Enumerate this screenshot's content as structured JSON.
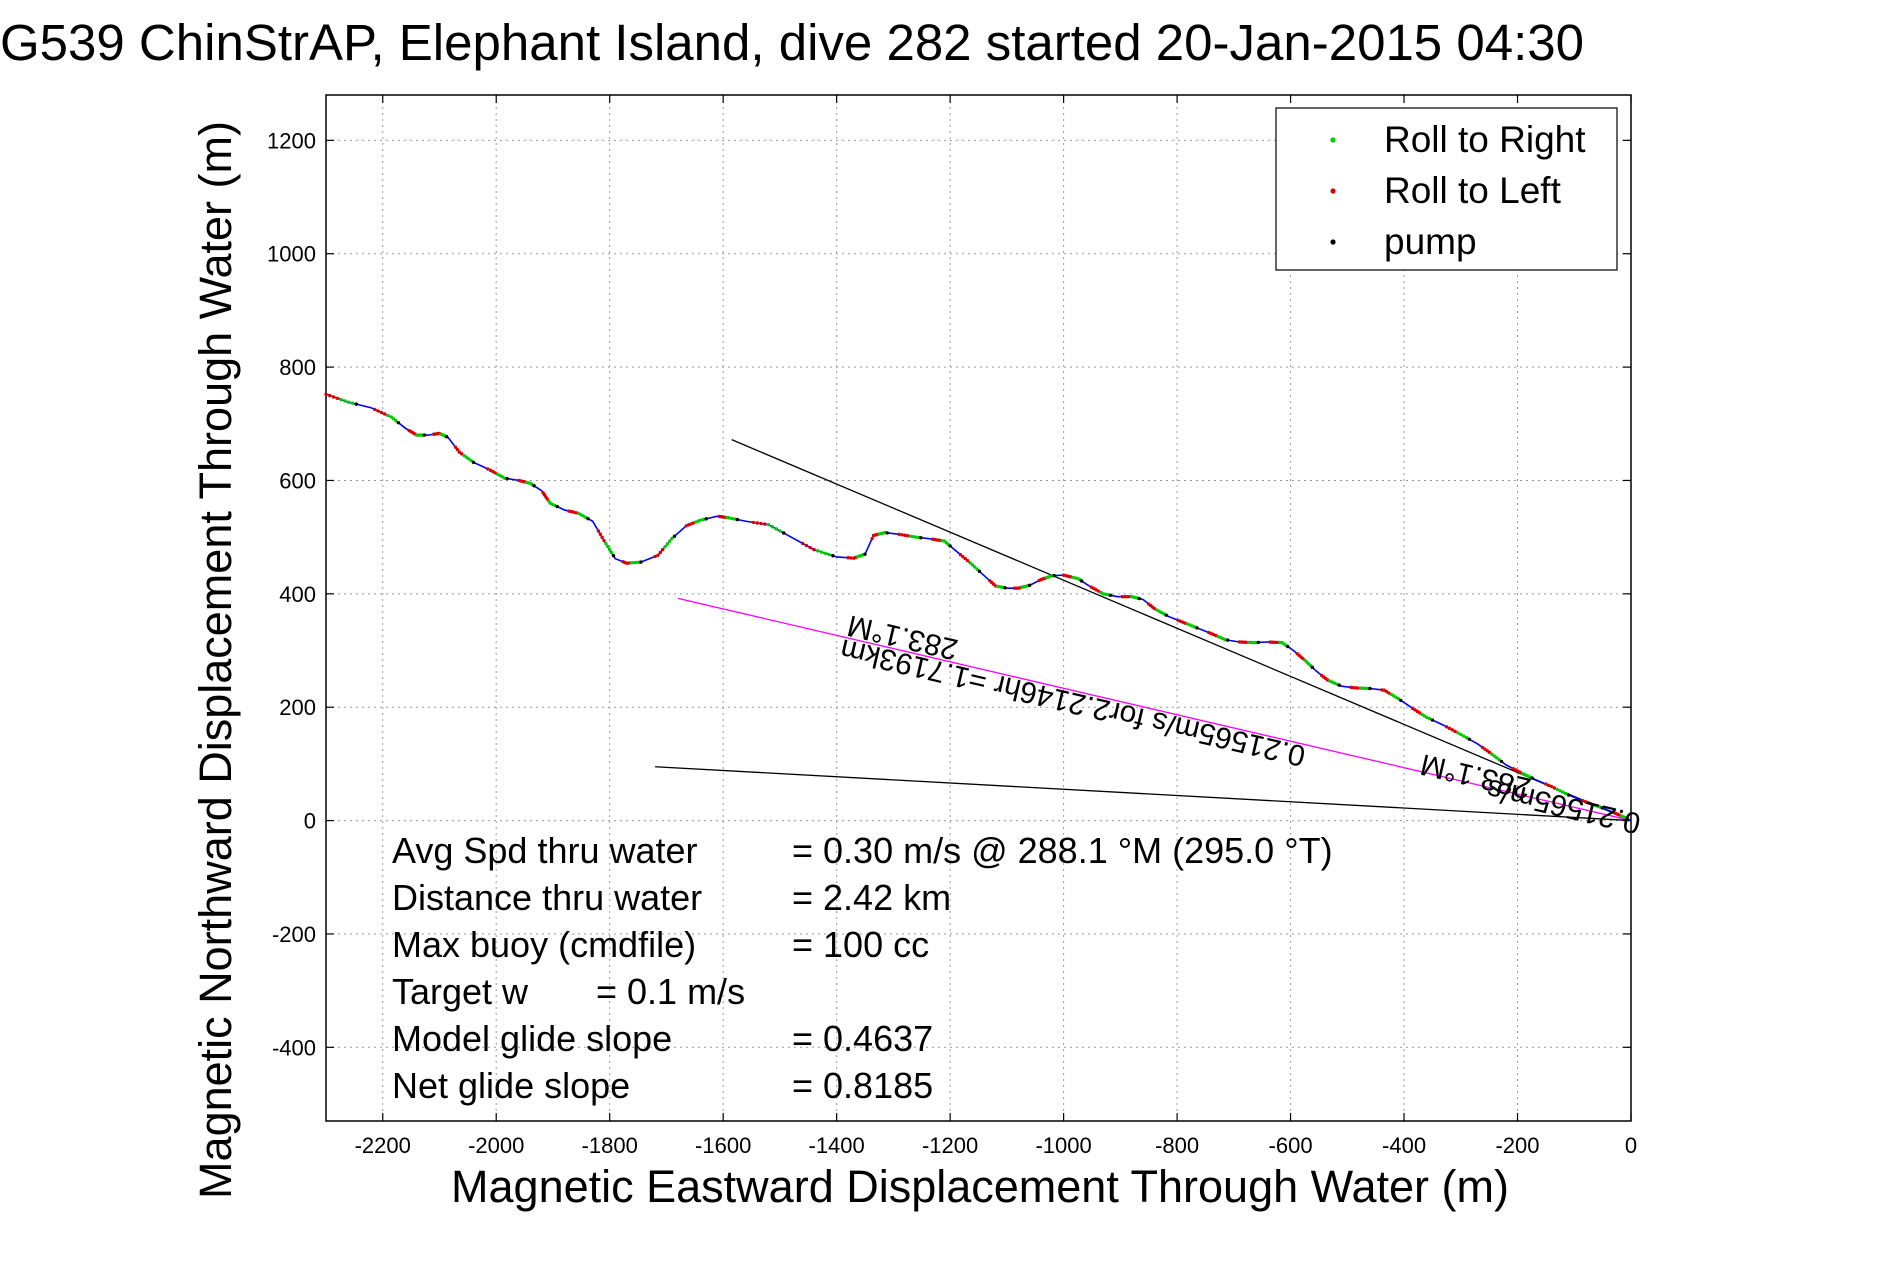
{
  "chart_data": {
    "type": "line",
    "title": "G539 ChinStrAP, Elephant Island, dive 282 started 20-Jan-2015 04:30",
    "xlabel": "Magnetic Eastward Displacement Through Water (m)",
    "ylabel": "Magnetic Northward Displacement Through Water (m)",
    "xlim": [
      -2300,
      0
    ],
    "ylim": [
      -530,
      1280
    ],
    "x_ticks": [
      -2200,
      -2000,
      -1800,
      -1600,
      -1400,
      -1200,
      -1000,
      -800,
      -600,
      -400,
      -200,
      0
    ],
    "y_ticks": [
      -400,
      -200,
      0,
      200,
      400,
      600,
      800,
      1000,
      1200
    ],
    "grid": true,
    "legend_position": "top-right",
    "legend": [
      {
        "label": "Roll to Right",
        "color": "#00cc00"
      },
      {
        "label": "Roll to Left",
        "color": "#dd0000"
      },
      {
        "label": "pump",
        "color": "#000000"
      }
    ],
    "track": {
      "color": "#0000ff",
      "points": [
        [
          -2300,
          752
        ],
        [
          -2260,
          738
        ],
        [
          -2220,
          728
        ],
        [
          -2185,
          712
        ],
        [
          -2160,
          692
        ],
        [
          -2140,
          680
        ],
        [
          -2120,
          680
        ],
        [
          -2100,
          683
        ],
        [
          -2085,
          676
        ],
        [
          -2065,
          650
        ],
        [
          -2040,
          632
        ],
        [
          -2010,
          618
        ],
        [
          -1985,
          604
        ],
        [
          -1960,
          600
        ],
        [
          -1940,
          595
        ],
        [
          -1920,
          582
        ],
        [
          -1905,
          560
        ],
        [
          -1880,
          548
        ],
        [
          -1855,
          542
        ],
        [
          -1830,
          528
        ],
        [
          -1810,
          494
        ],
        [
          -1790,
          462
        ],
        [
          -1770,
          454
        ],
        [
          -1745,
          456
        ],
        [
          -1715,
          468
        ],
        [
          -1690,
          498
        ],
        [
          -1665,
          520
        ],
        [
          -1640,
          530
        ],
        [
          -1610,
          537
        ],
        [
          -1590,
          534
        ],
        [
          -1560,
          528
        ],
        [
          -1520,
          522
        ],
        [
          -1480,
          500
        ],
        [
          -1440,
          478
        ],
        [
          -1400,
          465
        ],
        [
          -1370,
          463
        ],
        [
          -1350,
          470
        ],
        [
          -1335,
          503
        ],
        [
          -1315,
          508
        ],
        [
          -1290,
          505
        ],
        [
          -1260,
          500
        ],
        [
          -1235,
          497
        ],
        [
          -1210,
          493
        ],
        [
          -1190,
          476
        ],
        [
          -1165,
          455
        ],
        [
          -1140,
          432
        ],
        [
          -1120,
          414
        ],
        [
          -1100,
          410
        ],
        [
          -1080,
          410
        ],
        [
          -1060,
          415
        ],
        [
          -1040,
          425
        ],
        [
          -1020,
          432
        ],
        [
          -1000,
          433
        ],
        [
          -975,
          427
        ],
        [
          -955,
          414
        ],
        [
          -930,
          400
        ],
        [
          -905,
          395
        ],
        [
          -880,
          395
        ],
        [
          -860,
          390
        ],
        [
          -840,
          374
        ],
        [
          -815,
          360
        ],
        [
          -790,
          350
        ],
        [
          -765,
          340
        ],
        [
          -740,
          330
        ],
        [
          -715,
          319
        ],
        [
          -690,
          315
        ],
        [
          -665,
          314
        ],
        [
          -640,
          315
        ],
        [
          -615,
          314
        ],
        [
          -595,
          300
        ],
        [
          -575,
          283
        ],
        [
          -555,
          264
        ],
        [
          -535,
          248
        ],
        [
          -510,
          237
        ],
        [
          -485,
          234
        ],
        [
          -460,
          233
        ],
        [
          -435,
          230
        ],
        [
          -410,
          215
        ],
        [
          -385,
          198
        ],
        [
          -360,
          182
        ],
        [
          -330,
          168
        ],
        [
          -300,
          152
        ],
        [
          -270,
          135
        ],
        [
          -245,
          117
        ],
        [
          -220,
          98
        ],
        [
          -195,
          85
        ],
        [
          -170,
          73
        ],
        [
          -140,
          60
        ],
        [
          -110,
          45
        ],
        [
          -80,
          33
        ],
        [
          -55,
          24
        ],
        [
          -30,
          14
        ],
        [
          -10,
          5
        ],
        [
          0,
          0
        ]
      ]
    },
    "reference_lines": [
      {
        "color": "#000000",
        "points": [
          [
            -1585,
            672
          ],
          [
            0,
            0
          ]
        ]
      },
      {
        "color": "#ff00ff",
        "points": [
          [
            -1680,
            392
          ],
          [
            0,
            0
          ]
        ]
      },
      {
        "color": "#000000",
        "points": [
          [
            -1720,
            95
          ],
          [
            0,
            0
          ]
        ]
      }
    ],
    "annotations": [
      {
        "text": "283.1°M",
        "x": -1280,
        "y": 340,
        "angle": 193.1
      },
      {
        "text": "0.21565m/s for2.2146hr =1.7193km",
        "x": -980,
        "y": 225,
        "angle": 193.1
      },
      {
        "text": "283.1°M",
        "x": -270,
        "y": 95,
        "angle": 193.1
      },
      {
        "text": "0.21565m/s",
        "x": -115,
        "y": 42,
        "angle": 193.1
      }
    ],
    "stats": [
      {
        "label": "Avg Spd thru water",
        "value": "=  0.30 m/s @ 288.1 °M (295.0 °T)"
      },
      {
        "label": "Distance thru water",
        "value": "=  2.42 km"
      },
      {
        "label": "Max buoy (cmdfile)",
        "value": "= 100 cc"
      },
      {
        "label": "Target w",
        "value": "= 0.1 m/s"
      },
      {
        "label": "Model glide slope",
        "value": "= 0.4637"
      },
      {
        "label": "Net glide slope",
        "value": "= 0.8185"
      }
    ]
  }
}
